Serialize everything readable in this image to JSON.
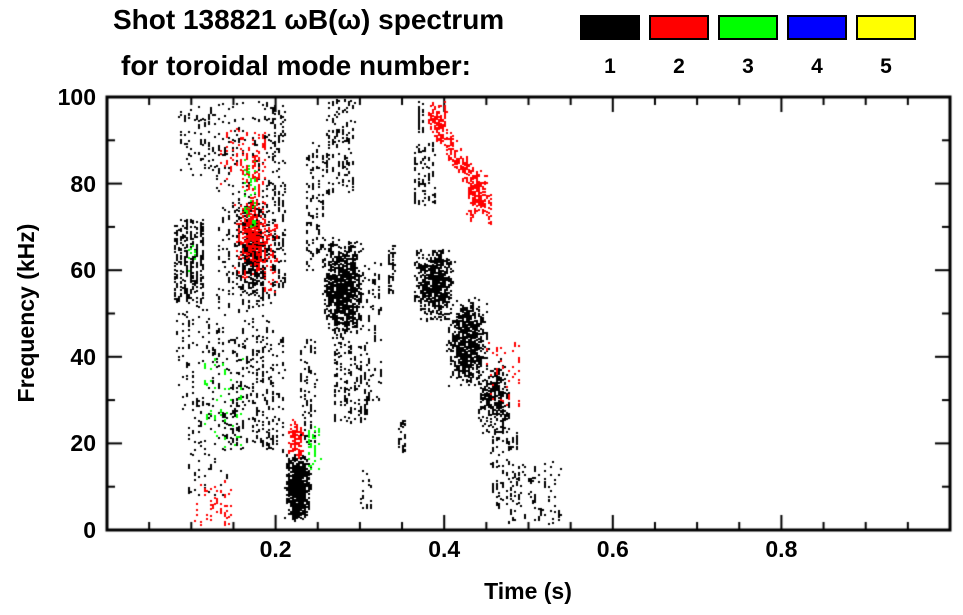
{
  "header": {
    "title": "Shot 138821 ωB(ω) spectrum",
    "subtitle": "for toroidal mode number:"
  },
  "legend": {
    "entries": [
      {
        "label": "1",
        "color": "#000000"
      },
      {
        "label": "2",
        "color": "#ff0000"
      },
      {
        "label": "3",
        "color": "#00ff00"
      },
      {
        "label": "4",
        "color": "#0000ff"
      },
      {
        "label": "5",
        "color": "#ffff00"
      }
    ]
  },
  "chart_data": {
    "type": "scatter",
    "title": "Shot 138821 ωB(ω) spectrum for toroidal mode number",
    "xlabel": "Time (s)",
    "ylabel": "Frequency (kHz)",
    "xlim": [
      0.0,
      1.0
    ],
    "ylim": [
      0,
      100
    ],
    "x_major_ticks": [
      0.2,
      0.4,
      0.6,
      0.8
    ],
    "x_minor_step": 0.05,
    "y_major_ticks": [
      0,
      20,
      40,
      60,
      80,
      100
    ],
    "y_minor_step": 10,
    "grid": false,
    "legend_position": "top-right",
    "frame_color": "#000000",
    "background": "#ffffff",
    "modes": {
      "1": "#000000",
      "2": "#ff0000",
      "3": "#00ff00",
      "4": "#0000ff",
      "5": "#ffff00"
    },
    "cluster_format": "m=toroidal mode number (color key in modes), t=[start,end] seconds, f=[min,max] kHz, n=approx point count, s=shape: v=vertical striations, b=dense blob, d=descending diagonal band",
    "clusters": [
      {
        "m": 1,
        "t": [
          0.079,
          0.116
        ],
        "f": [
          53,
          72
        ],
        "n": 280,
        "s": "v"
      },
      {
        "m": 1,
        "t": [
          0.085,
          0.13
        ],
        "f": [
          82,
          98
        ],
        "n": 80,
        "s": "v"
      },
      {
        "m": 1,
        "t": [
          0.082,
          0.135
        ],
        "f": [
          28,
          55
        ],
        "n": 110,
        "s": "v"
      },
      {
        "m": 1,
        "t": [
          0.095,
          0.145
        ],
        "f": [
          8,
          28
        ],
        "n": 70,
        "s": "v"
      },
      {
        "m": 1,
        "t": [
          0.13,
          0.2
        ],
        "f": [
          20,
          100
        ],
        "n": 420,
        "s": "v"
      },
      {
        "m": 1,
        "t": [
          0.15,
          0.196
        ],
        "f": [
          52,
          78
        ],
        "n": 420,
        "s": "b"
      },
      {
        "m": 1,
        "t": [
          0.145,
          0.212
        ],
        "f": [
          18,
          45
        ],
        "n": 170,
        "s": "v"
      },
      {
        "m": 1,
        "t": [
          0.197,
          0.212
        ],
        "f": [
          55,
          100
        ],
        "n": 130,
        "s": "v"
      },
      {
        "m": 1,
        "t": [
          0.21,
          0.242
        ],
        "f": [
          2,
          18
        ],
        "n": 680,
        "s": "b"
      },
      {
        "m": 1,
        "t": [
          0.228,
          0.25
        ],
        "f": [
          20,
          45
        ],
        "n": 80,
        "s": "v"
      },
      {
        "m": 1,
        "t": [
          0.235,
          0.26
        ],
        "f": [
          60,
          90
        ],
        "n": 110,
        "s": "v"
      },
      {
        "m": 1,
        "t": [
          0.255,
          0.305
        ],
        "f": [
          44,
          68
        ],
        "n": 850,
        "s": "b"
      },
      {
        "m": 1,
        "t": [
          0.26,
          0.295
        ],
        "f": [
          78,
          100
        ],
        "n": 140,
        "s": "v"
      },
      {
        "m": 1,
        "t": [
          0.268,
          0.31
        ],
        "f": [
          25,
          44
        ],
        "n": 150,
        "s": "v"
      },
      {
        "m": 1,
        "t": [
          0.308,
          0.328
        ],
        "f": [
          30,
          62
        ],
        "n": 60,
        "s": "v"
      },
      {
        "m": 1,
        "t": [
          0.3,
          0.315
        ],
        "f": [
          5,
          15
        ],
        "n": 15,
        "s": "v"
      },
      {
        "m": 1,
        "t": [
          0.333,
          0.342
        ],
        "f": [
          55,
          66
        ],
        "n": 40,
        "s": "v"
      },
      {
        "m": 1,
        "t": [
          0.344,
          0.356
        ],
        "f": [
          18,
          26
        ],
        "n": 28,
        "s": "v"
      },
      {
        "m": 1,
        "t": [
          0.363,
          0.412
        ],
        "f": [
          48,
          66
        ],
        "n": 520,
        "s": "b"
      },
      {
        "m": 1,
        "t": [
          0.4,
          0.452
        ],
        "f": [
          33,
          54
        ],
        "n": 620,
        "s": "b"
      },
      {
        "m": 1,
        "t": [
          0.438,
          0.478
        ],
        "f": [
          22,
          40
        ],
        "n": 260,
        "s": "b"
      },
      {
        "m": 1,
        "t": [
          0.455,
          0.49
        ],
        "f": [
          6,
          24
        ],
        "n": 90,
        "s": "v"
      },
      {
        "m": 1,
        "t": [
          0.363,
          0.39
        ],
        "f": [
          75,
          90
        ],
        "n": 70,
        "s": "v"
      },
      {
        "m": 1,
        "t": [
          0.368,
          0.378
        ],
        "f": [
          92,
          100
        ],
        "n": 24,
        "s": "v"
      },
      {
        "m": 1,
        "t": [
          0.475,
          0.54
        ],
        "f": [
          1,
          16
        ],
        "n": 85,
        "s": "v"
      },
      {
        "m": 3,
        "t": [
          0.162,
          0.178
        ],
        "f": [
          70,
          86
        ],
        "n": 55,
        "s": "v"
      },
      {
        "m": 3,
        "t": [
          0.115,
          0.162
        ],
        "f": [
          18,
          40
        ],
        "n": 45,
        "s": "v"
      },
      {
        "m": 3,
        "t": [
          0.238,
          0.255
        ],
        "f": [
          14,
          24
        ],
        "n": 32,
        "s": "v"
      },
      {
        "m": 3,
        "t": [
          0.096,
          0.106
        ],
        "f": [
          58,
          66
        ],
        "n": 10,
        "s": "v"
      },
      {
        "m": 2,
        "t": [
          0.15,
          0.195
        ],
        "f": [
          58,
          78
        ],
        "n": 300,
        "s": "b"
      },
      {
        "m": 2,
        "t": [
          0.158,
          0.19
        ],
        "f": [
          78,
          92
        ],
        "n": 80,
        "s": "v"
      },
      {
        "m": 2,
        "t": [
          0.133,
          0.158
        ],
        "f": [
          80,
          93
        ],
        "n": 28,
        "s": "v"
      },
      {
        "m": 2,
        "t": [
          0.185,
          0.205
        ],
        "f": [
          55,
          72
        ],
        "n": 45,
        "s": "v"
      },
      {
        "m": 2,
        "t": [
          0.104,
          0.15
        ],
        "f": [
          1,
          12
        ],
        "n": 45,
        "s": "v"
      },
      {
        "m": 2,
        "t": [
          0.212,
          0.232
        ],
        "f": [
          16,
          26
        ],
        "n": 80,
        "s": "b"
      },
      {
        "m": 2,
        "t": [
          0.38,
          0.455
        ],
        "f": [
          74,
          97
        ],
        "n": 270,
        "s": "d"
      },
      {
        "m": 2,
        "t": [
          0.425,
          0.452
        ],
        "f": [
          72,
          85
        ],
        "n": 90,
        "s": "b"
      },
      {
        "m": 2,
        "t": [
          0.385,
          0.405
        ],
        "f": [
          93,
          99
        ],
        "n": 35,
        "s": "v"
      },
      {
        "m": 2,
        "t": [
          0.448,
          0.492
        ],
        "f": [
          29,
          44
        ],
        "n": 38,
        "s": "v"
      }
    ]
  }
}
